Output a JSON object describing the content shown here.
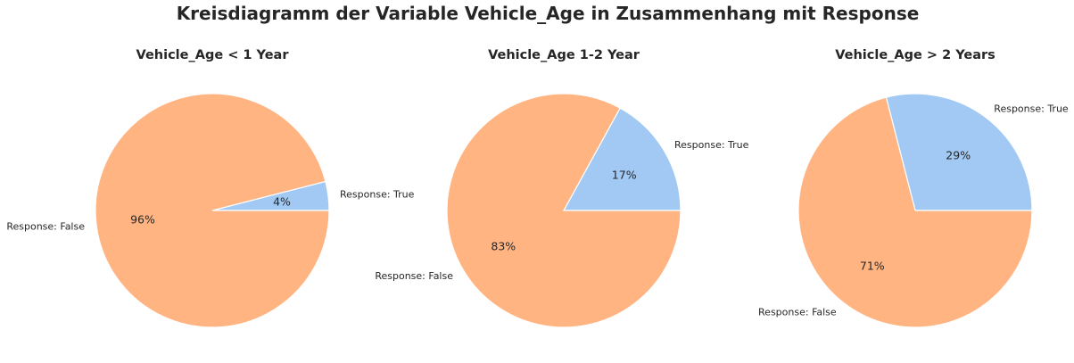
{
  "title": "Kreisdiagramm der Variable Vehicle_Age in Zusammenhang mit Response",
  "colors": {
    "Response: True": "#a1c9f4",
    "Response: False": "#ffb482",
    "edge": "#ffffff",
    "text": "#262626"
  },
  "chart_data": [
    {
      "type": "pie",
      "title": "Vehicle_Age < 1 Year",
      "labels": [
        "Response: True",
        "Response: False"
      ],
      "values": [
        4,
        96
      ],
      "value_labels": [
        "4%",
        "96%"
      ]
    },
    {
      "type": "pie",
      "title": "Vehicle_Age 1-2 Year",
      "labels": [
        "Response: True",
        "Response: False"
      ],
      "values": [
        17,
        83
      ],
      "value_labels": [
        "17%",
        "83%"
      ]
    },
    {
      "type": "pie",
      "title": "Vehicle_Age > 2 Years",
      "labels": [
        "Response: True",
        "Response: False"
      ],
      "values": [
        29,
        71
      ],
      "value_labels": [
        "29%",
        "71%"
      ]
    }
  ]
}
